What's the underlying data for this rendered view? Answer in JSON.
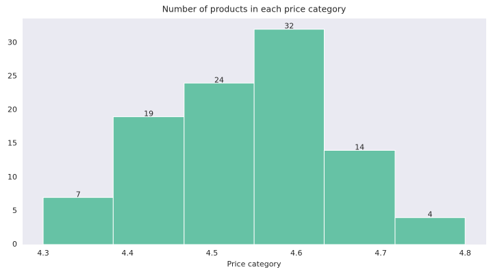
{
  "chart_data": {
    "type": "histogram",
    "title": "Number of products in each price category",
    "x_label": "Price category",
    "bins": [
      4.3,
      4.383,
      4.467,
      4.55,
      4.633,
      4.717,
      4.8
    ],
    "values": [
      7,
      19,
      24,
      32,
      14,
      4
    ],
    "color": "#66c2a5",
    "xlim": [
      4.2756,
      4.825
    ],
    "xticks": [
      4.3,
      4.4,
      4.5,
      4.6,
      4.7,
      4.8
    ],
    "ylim": [
      0,
      33.6
    ],
    "yticks": [
      0,
      5,
      10,
      15,
      20,
      25,
      30
    ],
    "grid": false,
    "background": "#eaeaf2"
  }
}
